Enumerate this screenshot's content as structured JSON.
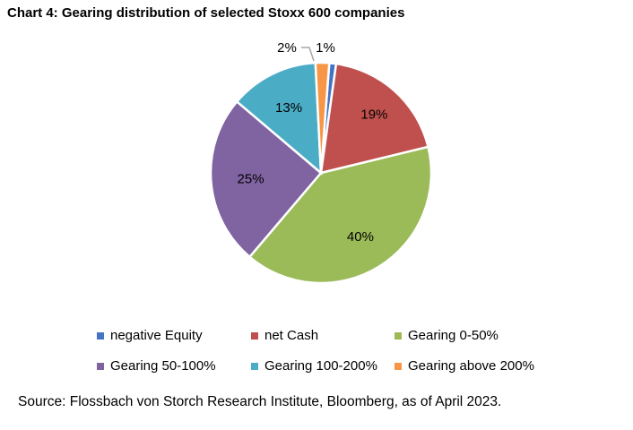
{
  "title": "Chart 4: Gearing distribution of selected Stoxx 600 companies",
  "source": "Source: Flossbach von Storch Research Institute, Bloomberg, as of April 2023.",
  "chart_data": {
    "type": "pie",
    "title": "Chart 4: Gearing distribution of selected Stoxx 600 companies",
    "categories": [
      "negative Equity",
      "net Cash",
      "Gearing 0-50%",
      "Gearing 50-100%",
      "Gearing 100-200%",
      "Gearing above 200%"
    ],
    "values": [
      1,
      19,
      40,
      25,
      13,
      2
    ],
    "labels": [
      "1%",
      "19%",
      "40%",
      "25%",
      "13%",
      "2%"
    ],
    "colors": [
      "#4472C4",
      "#C0504D",
      "#9BBB59",
      "#8064A2",
      "#4BACC6",
      "#F79646"
    ],
    "legend_placement": "bottom"
  }
}
